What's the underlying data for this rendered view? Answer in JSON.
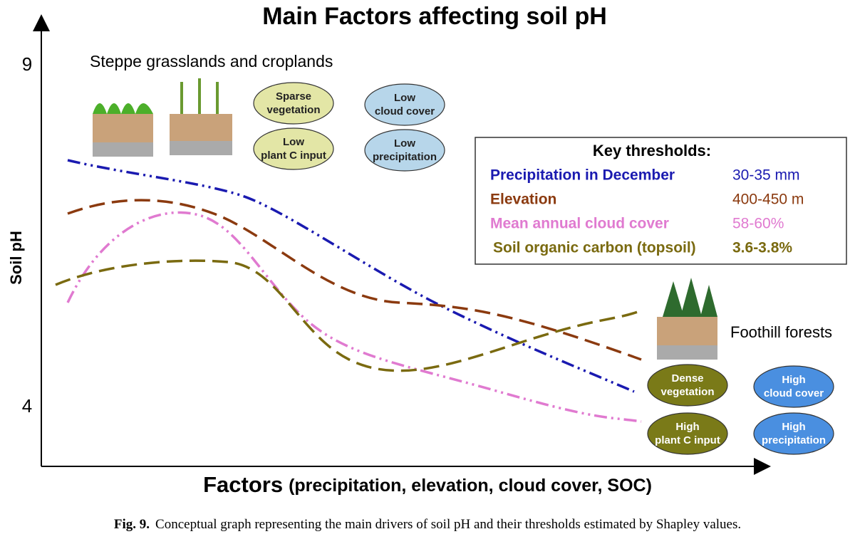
{
  "title": "Main Factors affecting soil pH",
  "y_axis": {
    "label": "Soil pH",
    "top_label": "9",
    "bottom_label": "4"
  },
  "x_axis": {
    "label_main": "Factors",
    "label_rest": "(precipitation, elevation, cloud cover, SOC)"
  },
  "regions": {
    "top": "Steppe grasslands and croplands",
    "bottom": "Foothill forests"
  },
  "top_ellipses": [
    [
      "Sparse",
      "vegetation"
    ],
    [
      "Low",
      "cloud cover"
    ],
    [
      "Low",
      "plant C input"
    ],
    [
      "Low",
      "precipitation"
    ]
  ],
  "bottom_ellipses": [
    [
      "Dense",
      "vegetation"
    ],
    [
      "High",
      "cloud cover"
    ],
    [
      "High",
      "plant C input"
    ],
    [
      "High",
      "precipitation"
    ]
  ],
  "thresholds": {
    "title": "Key thresholds:",
    "rows": [
      [
        "Precipitation in December",
        "30-35 mm"
      ],
      [
        "Elevation",
        "400-450 m"
      ],
      [
        "Mean annual cloud cover",
        "58-60%"
      ],
      [
        "Soil organic carbon (topsoil)",
        "3.6-3.8%"
      ]
    ]
  },
  "caption": {
    "label": "Fig. 9.",
    "text": "Conceptual graph representing the main drivers of soil pH and their thresholds estimated by Shapley values."
  }
}
